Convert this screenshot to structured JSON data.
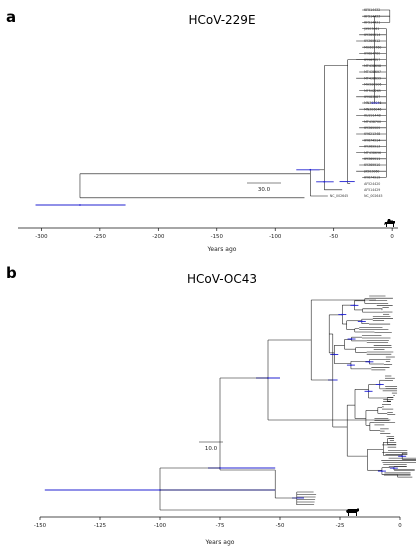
{
  "panel_a": {
    "letter": "a",
    "title": "HCoV-229E",
    "scale_bar_label": "30.0",
    "reservoir_icon": "camel-icon",
    "tips": [
      "KF514432",
      "KF514433",
      "KF514431",
      "JX503061",
      "KY369914",
      "KY369912",
      "MH609760",
      "KY684760",
      "KY967357",
      "MT438698",
      "MT438697",
      "MT438699",
      "MH580906",
      "MF542265",
      "KY983587",
      "MN369046",
      "MN306046",
      "KU291448",
      "MT438700",
      "KY369909",
      "KY621348",
      "KY674914",
      "KY369913",
      "MT438696",
      "KY369911",
      "KY369910",
      "JX503060",
      "KY674919",
      "AF524420",
      "AF514429",
      "NC_002645"
    ]
  },
  "panel_b": {
    "letter": "b",
    "title": "HCoV-OC43",
    "scale_bar_label": "10.0",
    "reservoir_icon": "cow-icon"
  },
  "chart_data": [
    {
      "type": "tree",
      "title": "HCoV-229E",
      "xlabel": "Years ago",
      "xlim": [
        -320,
        5
      ],
      "ticks": [
        -300,
        -250,
        -200,
        -150,
        -100,
        -50,
        0
      ],
      "tick_labels": [
        "-300",
        "-250",
        "-200",
        "-150",
        "-100",
        "-50",
        "0"
      ],
      "root_age_years_ago": 267,
      "scale_bar_years": 30
    },
    {
      "type": "tree",
      "title": "HCoV-OC43",
      "xlabel": "Years ago",
      "xlim": [
        -150,
        0
      ],
      "ticks": [
        -150,
        -125,
        -100,
        -75,
        -50,
        -25,
        0
      ],
      "tick_labels": [
        "-150",
        "-125",
        "-100",
        "-75",
        "-50",
        "-25",
        "0"
      ],
      "root_age_years_ago": 100,
      "scale_bar_years": 10
    }
  ]
}
